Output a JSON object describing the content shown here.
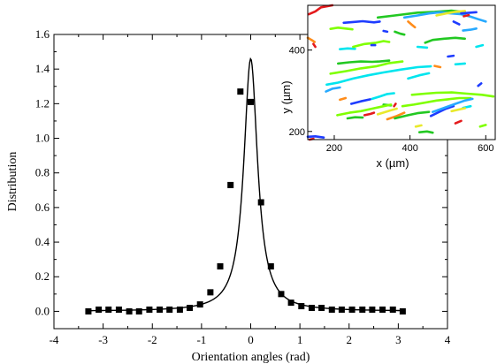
{
  "chart_data": [
    {
      "type": "scatter",
      "xlabel": "Orientation angles (rad)",
      "ylabel": "Distribution",
      "xlim": [
        -4,
        4
      ],
      "ylim": [
        -0.1,
        1.6
      ],
      "xticks": [
        -4,
        -3,
        -2,
        -1,
        0,
        1,
        2,
        3,
        4
      ],
      "yticks": [
        0.0,
        0.2,
        0.4,
        0.6,
        0.8,
        1.0,
        1.2,
        1.4,
        1.6
      ],
      "xtick_labels": [
        "-4",
        "-3",
        "-2",
        "-1",
        "0",
        "1",
        "2",
        "3",
        "4"
      ],
      "ytick_labels": [
        "0.0",
        "0.2",
        "0.4",
        "0.6",
        "0.8",
        "1.0",
        "1.2",
        "1.4",
        "1.6"
      ],
      "grid": false,
      "series": [
        {
          "marker": "square",
          "color": "#000000",
          "x": [
            -3.3,
            -3.09,
            -2.89,
            -2.68,
            -2.47,
            -2.27,
            -2.06,
            -1.85,
            -1.65,
            -1.44,
            -1.24,
            -1.03,
            -0.82,
            -0.62,
            -0.41,
            -0.21,
            0.0,
            0.21,
            0.41,
            0.62,
            0.82,
            1.03,
            1.24,
            1.44,
            1.65,
            1.85,
            2.06,
            2.27,
            2.47,
            2.68,
            2.89,
            3.09
          ],
          "y": [
            0.0,
            0.01,
            0.01,
            0.01,
            0.0,
            0.0,
            0.01,
            0.01,
            0.01,
            0.01,
            0.02,
            0.04,
            0.11,
            0.26,
            0.73,
            1.27,
            1.21,
            0.63,
            0.26,
            0.1,
            0.05,
            0.03,
            0.02,
            0.02,
            0.01,
            0.01,
            0.01,
            0.01,
            0.01,
            0.01,
            0.01,
            0.0
          ]
        },
        {
          "type": "line",
          "color": "#000000",
          "peak_x": 0.0,
          "peak_y": 1.46
        }
      ]
    },
    {
      "type": "line",
      "xlabel": "x (µm)",
      "ylabel": "y (µm)",
      "xlim": [
        130,
        625
      ],
      "ylim": [
        180,
        510
      ],
      "xticks": [
        200,
        400,
        600
      ],
      "yticks": [
        200,
        400
      ],
      "xtick_labels": [
        "200",
        "400",
        "600"
      ],
      "ytick_labels": [
        "200",
        "400"
      ],
      "series": [
        {
          "color": "#e41a1c",
          "points": [
            [
              133,
              488
            ],
            [
              150,
              495
            ],
            [
              165,
              505
            ],
            [
              195,
              510
            ]
          ]
        },
        {
          "color": "#1e3cff",
          "points": [
            [
              225,
              467
            ],
            [
              250,
              469
            ],
            [
              275,
              471
            ],
            [
              305,
              468
            ],
            [
              320,
              470
            ]
          ]
        },
        {
          "color": "#22c822",
          "points": [
            [
              315,
              480
            ],
            [
              360,
              485
            ],
            [
              420,
              492
            ],
            [
              465,
              494
            ],
            [
              510,
              497
            ],
            [
              545,
              493
            ]
          ]
        },
        {
          "color": "#26a9ff",
          "points": [
            [
              385,
              480
            ],
            [
              420,
              485
            ],
            [
              450,
              490
            ],
            [
              480,
              493
            ],
            [
              510,
              490
            ],
            [
              535,
              488
            ],
            [
              560,
              482
            ],
            [
              580,
              476
            ],
            [
              600,
              470
            ]
          ]
        },
        {
          "color": "#e9e92c",
          "points": [
            [
              470,
              485
            ],
            [
              495,
              490
            ],
            [
              520,
              494
            ],
            [
              545,
              496
            ]
          ]
        },
        {
          "color": "#ff8c1a",
          "points": [
            [
              395,
              470
            ],
            [
              405,
              462
            ],
            [
              413,
              456
            ]
          ]
        },
        {
          "color": "#e41a1c",
          "points": [
            [
              542,
              483
            ],
            [
              555,
              486
            ]
          ]
        },
        {
          "color": "#1e3cff",
          "points": [
            [
              535,
              490
            ],
            [
              560,
              492
            ],
            [
              575,
              493
            ]
          ]
        },
        {
          "color": "#7fff00",
          "points": [
            [
              190,
              452
            ],
            [
              210,
              455
            ],
            [
              230,
              453
            ],
            [
              248,
              451
            ]
          ]
        },
        {
          "color": "#1e3cff",
          "points": [
            [
              515,
              470
            ],
            [
              530,
              463
            ]
          ]
        },
        {
          "color": "#22c822",
          "points": [
            [
              360,
              445
            ],
            [
              375,
              440
            ],
            [
              385,
              438
            ]
          ]
        },
        {
          "color": "#26a9ff",
          "points": [
            [
              540,
              448
            ],
            [
              560,
              450
            ],
            [
              575,
              453
            ]
          ]
        },
        {
          "color": "#1e3cff",
          "points": [
            [
              330,
              447
            ],
            [
              340,
              445
            ]
          ]
        },
        {
          "color": "#ff8c1a",
          "points": [
            [
              130,
              430
            ],
            [
              140,
              425
            ],
            [
              148,
              420
            ]
          ]
        },
        {
          "color": "#00e5ee",
          "points": [
            [
              215,
              402
            ],
            [
              235,
              404
            ],
            [
              255,
              403
            ]
          ]
        },
        {
          "color": "#e41a1c",
          "points": [
            [
              145,
              415
            ],
            [
              150,
              408
            ]
          ]
        },
        {
          "color": "#7fff00",
          "points": [
            [
              250,
              408
            ],
            [
              280,
              415
            ],
            [
              310,
              418
            ],
            [
              330,
              422
            ],
            [
              345,
              420
            ]
          ]
        },
        {
          "color": "#1e3cff",
          "points": [
            [
              298,
              412
            ],
            [
              308,
              412
            ]
          ]
        },
        {
          "color": "#22c822",
          "points": [
            [
              440,
              418
            ],
            [
              460,
              425
            ],
            [
              490,
              428
            ],
            [
              520,
              430
            ],
            [
              545,
              428
            ]
          ]
        },
        {
          "color": "#00e5ee",
          "points": [
            [
              420,
              408
            ],
            [
              445,
              406
            ]
          ]
        },
        {
          "color": "#22c822",
          "points": [
            [
              210,
              367
            ],
            [
              240,
              370
            ],
            [
              270,
              372
            ],
            [
              300,
              371
            ],
            [
              320,
              372
            ],
            [
              345,
              374
            ]
          ]
        },
        {
          "color": "#1e3cff",
          "points": [
            [
              500,
              384
            ],
            [
              515,
              386
            ]
          ]
        },
        {
          "color": "#00e5ee",
          "points": [
            [
              575,
              408
            ],
            [
              592,
              412
            ]
          ]
        },
        {
          "color": "#ff8c1a",
          "points": [
            [
              465,
              361
            ],
            [
              480,
              358
            ]
          ]
        },
        {
          "color": "#00e5ee",
          "points": [
            [
              520,
              365
            ],
            [
              545,
              367
            ]
          ]
        },
        {
          "color": "#7fff00",
          "points": [
            [
              190,
              342
            ],
            [
              230,
              348
            ],
            [
              270,
              355
            ],
            [
              310,
              360
            ],
            [
              345,
              368
            ],
            [
              380,
              372
            ]
          ]
        },
        {
          "color": "#00e5ee",
          "points": [
            [
              180,
              315
            ],
            [
              210,
              320
            ],
            [
              250,
              330
            ],
            [
              290,
              338
            ],
            [
              330,
              345
            ],
            [
              375,
              352
            ],
            [
              420,
              358
            ],
            [
              455,
              360
            ]
          ]
        },
        {
          "color": "#00e5ee",
          "points": [
            [
              395,
              330
            ],
            [
              425,
              338
            ],
            [
              450,
              343
            ]
          ]
        },
        {
          "color": "#7fff00",
          "points": [
            [
              405,
              290
            ],
            [
              440,
              293
            ],
            [
              470,
              295
            ],
            [
              510,
              296
            ],
            [
              550,
              293
            ],
            [
              590,
              290
            ],
            [
              620,
              286
            ]
          ]
        },
        {
          "color": "#1e3cff",
          "points": [
            [
              580,
              312
            ],
            [
              588,
              318
            ]
          ]
        },
        {
          "color": "#26a9ff",
          "points": [
            [
              178,
              298
            ],
            [
              195,
              305
            ],
            [
              215,
              308
            ]
          ]
        },
        {
          "color": "#ff8c1a",
          "points": [
            [
              215,
              278
            ],
            [
              230,
              282
            ]
          ]
        },
        {
          "color": "#1e3cff",
          "points": [
            [
              245,
              268
            ],
            [
              270,
              274
            ],
            [
              295,
              279
            ]
          ]
        },
        {
          "color": "#00e5ee",
          "points": [
            [
              300,
              280
            ],
            [
              320,
              286
            ],
            [
              340,
              292
            ],
            [
              358,
              294
            ]
          ]
        },
        {
          "color": "#e41a1c",
          "points": [
            [
              358,
              262
            ],
            [
              362,
              268
            ]
          ]
        },
        {
          "color": "#22c822",
          "points": [
            [
              330,
              266
            ],
            [
              350,
              264
            ]
          ]
        },
        {
          "color": "#7fff00",
          "points": [
            [
              380,
              262
            ],
            [
              410,
              266
            ],
            [
              440,
              271
            ],
            [
              470,
              276
            ],
            [
              500,
              279
            ],
            [
              530,
              282
            ],
            [
              560,
              282
            ]
          ]
        },
        {
          "color": "#7fff00",
          "points": [
            [
              208,
              240
            ],
            [
              240,
              246
            ],
            [
              270,
              250
            ],
            [
              300,
              256
            ],
            [
              330,
              262
            ],
            [
              350,
              266
            ]
          ]
        },
        {
          "color": "#22c822",
          "points": [
            [
              235,
              232
            ],
            [
              255,
              235
            ],
            [
              275,
              234
            ]
          ]
        },
        {
          "color": "#e41a1c",
          "points": [
            [
              280,
              240
            ],
            [
              295,
              243
            ],
            [
              305,
              246
            ]
          ]
        },
        {
          "color": "#e9e92c",
          "points": [
            [
              315,
              242
            ],
            [
              335,
              248
            ],
            [
              350,
              252
            ],
            [
              365,
              256
            ]
          ]
        },
        {
          "color": "#ff8c1a",
          "points": [
            [
              340,
              230
            ],
            [
              365,
              238
            ],
            [
              385,
              246
            ]
          ]
        },
        {
          "color": "#22c822",
          "points": [
            [
              360,
              232
            ],
            [
              395,
              240
            ],
            [
              420,
              245
            ],
            [
              450,
              248
            ]
          ]
        },
        {
          "color": "#1e3cff",
          "points": [
            [
              455,
              238
            ],
            [
              475,
              247
            ],
            [
              495,
              256
            ],
            [
              515,
              262
            ]
          ]
        },
        {
          "color": "#26a9ff",
          "points": [
            [
              460,
              248
            ],
            [
              490,
              258
            ],
            [
              520,
              268
            ],
            [
              545,
              276
            ],
            [
              565,
              280
            ]
          ]
        },
        {
          "color": "#00e5ee",
          "points": [
            [
              540,
              258
            ],
            [
              560,
              262
            ]
          ]
        },
        {
          "color": "#e9e92c",
          "points": [
            [
              510,
              250
            ],
            [
              530,
              254
            ],
            [
              545,
              257
            ]
          ]
        },
        {
          "color": "#e41a1c",
          "points": [
            [
              520,
              220
            ],
            [
              535,
              226
            ]
          ]
        },
        {
          "color": "#7fff00",
          "points": [
            [
              585,
              212
            ],
            [
              600,
              216
            ]
          ]
        },
        {
          "color": "#e9e92c",
          "points": [
            [
              415,
              212
            ],
            [
              430,
              215
            ]
          ]
        },
        {
          "color": "#22c822",
          "points": [
            [
              425,
              198
            ],
            [
              445,
              200
            ],
            [
              460,
              197
            ]
          ]
        },
        {
          "color": "#1e3cff",
          "points": [
            [
              130,
              187
            ],
            [
              150,
              188
            ],
            [
              172,
              185
            ]
          ]
        },
        {
          "color": "#e41a1c",
          "points": [
            [
              135,
              180
            ],
            [
              145,
              182
            ]
          ]
        }
      ]
    }
  ]
}
